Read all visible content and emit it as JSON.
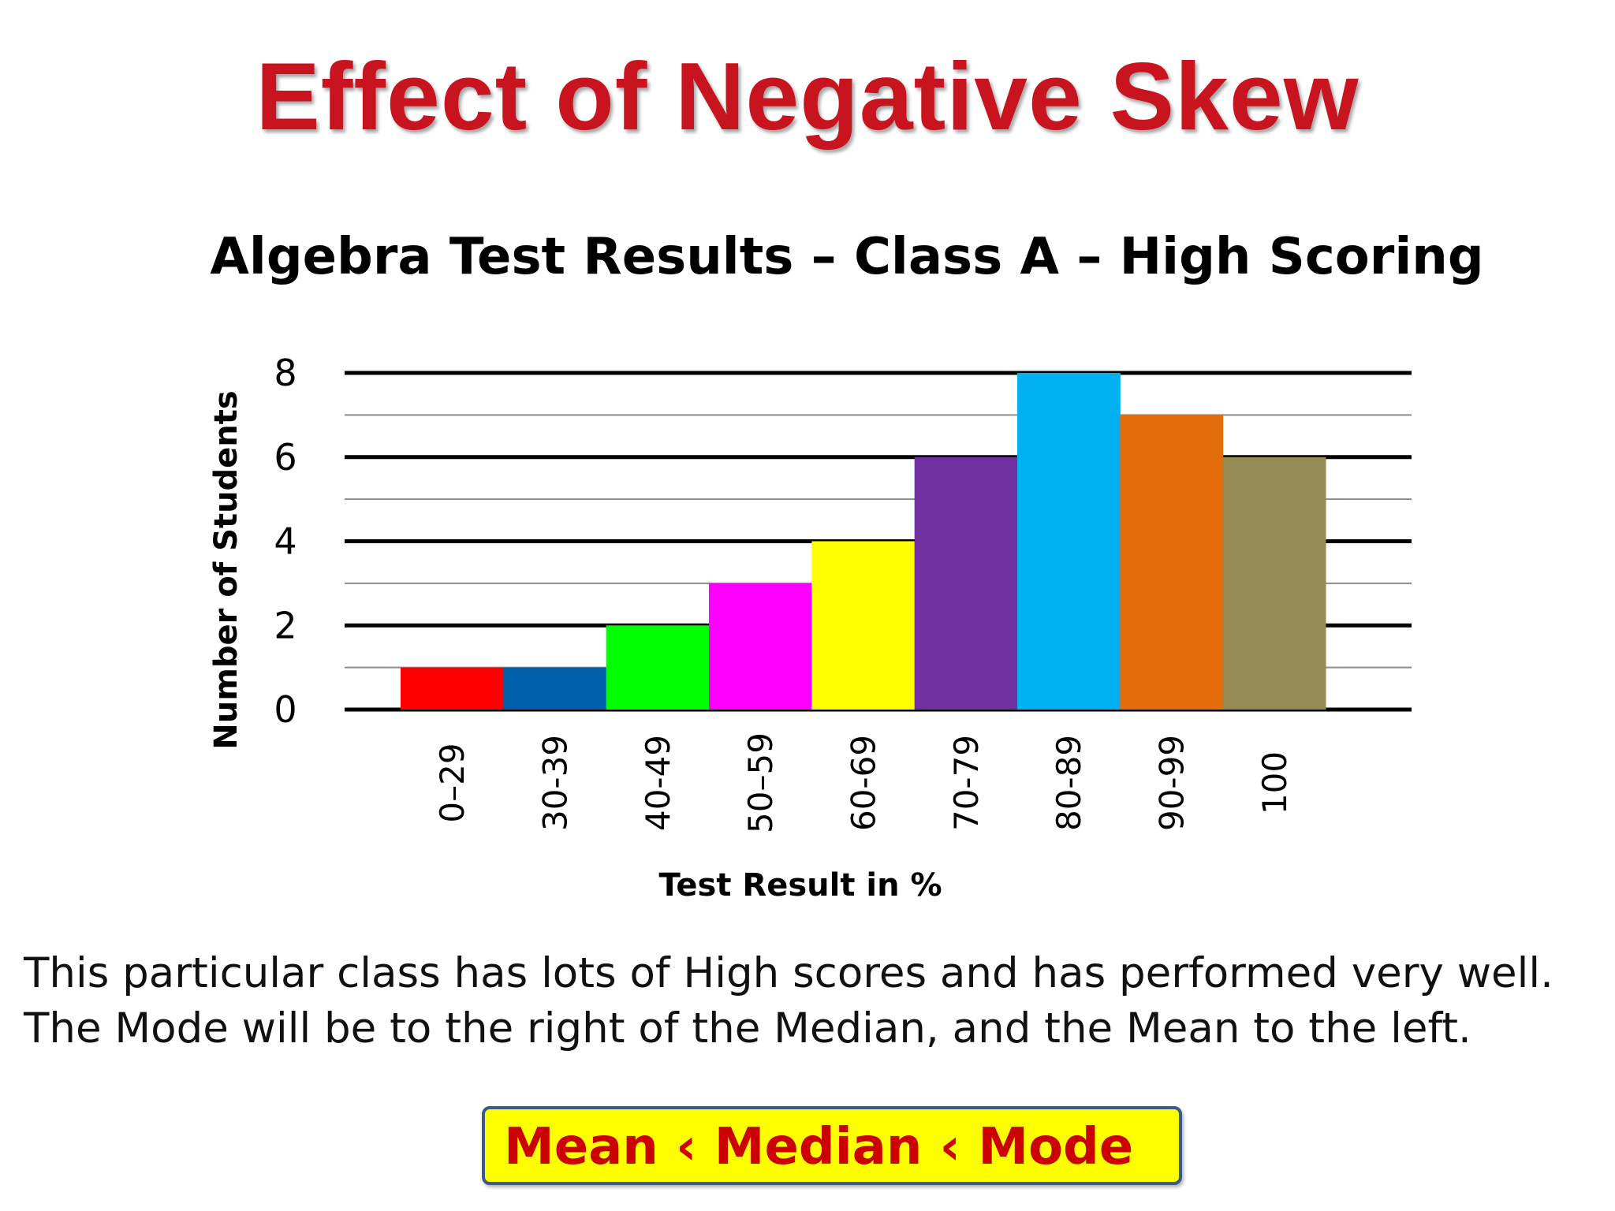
{
  "slide": {
    "title": "Effect of Negative Skew",
    "caption_lines": [
      "This particular class has lots of High scores and has performed very well.",
      "The Mode will be to the right of the Median, and the Mean to the left."
    ],
    "formula": "Mean ‹ Median ‹ Mode"
  },
  "chart_data": {
    "type": "bar",
    "title": "Algebra Test Results – Class A – High Scoring",
    "xlabel": "Test Result in %",
    "ylabel": "Number of Students",
    "categories": [
      "0–29",
      "30-39",
      "40-49",
      "50–59",
      "60-69",
      "70-79",
      "80-89",
      "90-99",
      "100"
    ],
    "values": [
      1,
      1,
      2,
      3,
      4,
      6,
      8,
      7,
      6
    ],
    "colors": [
      "#ff0000",
      "#0060aa",
      "#00ff00",
      "#ff00ff",
      "#ffff00",
      "#7030a0",
      "#00b0f0",
      "#e46c0a",
      "#948a54"
    ],
    "ylim": [
      0,
      8
    ],
    "yticks": [
      0,
      2,
      4,
      6,
      8
    ],
    "grid": true,
    "legend": "none"
  },
  "colors": {
    "title": "#c8141e",
    "formula_text": "#cc0000",
    "formula_box": "#ffff00",
    "formula_border": "#3a5a8c"
  }
}
